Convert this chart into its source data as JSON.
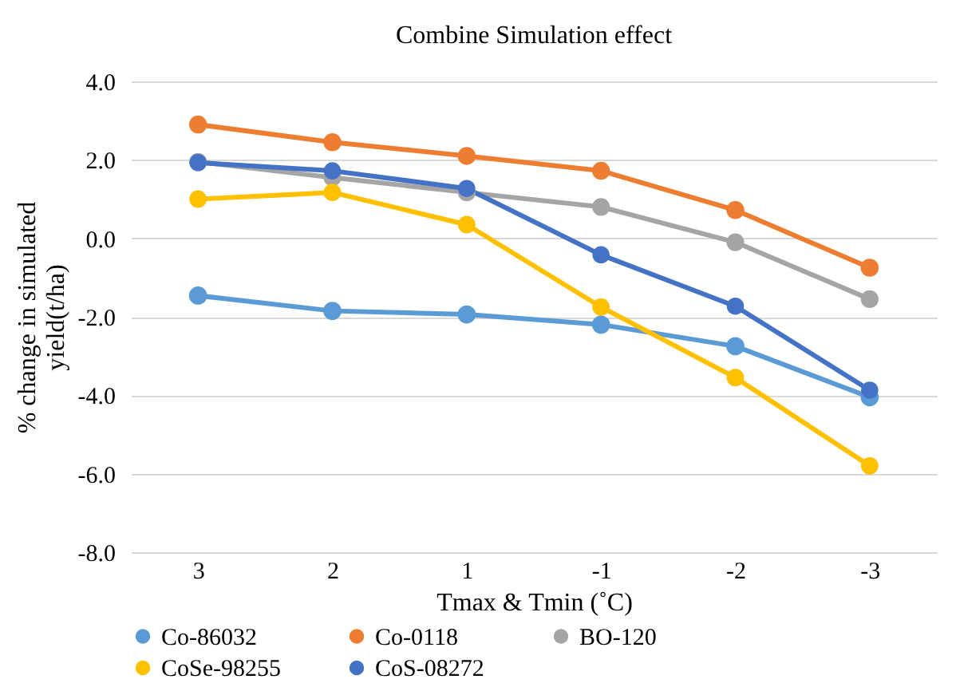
{
  "chart_data": {
    "type": "line",
    "title": "Combine Simulation  effect",
    "xlabel": "Tmax & Tmin (˚C)",
    "ylabel": "% change in simulated yield(t/ha)",
    "categories": [
      "3",
      "2",
      "1",
      "-1",
      "-2",
      "-3"
    ],
    "series": [
      {
        "name": "Co-86032",
        "color": "#5b9bd5",
        "values": [
          -1.46,
          -1.85,
          -1.94,
          -2.2,
          -2.75,
          -4.05
        ]
      },
      {
        "name": "Co-0118",
        "color": "#ed7d31",
        "values": [
          2.9,
          2.45,
          2.1,
          1.72,
          0.72,
          -0.75
        ]
      },
      {
        "name": "BO-120",
        "color": "#a5a5a5",
        "values": [
          1.95,
          1.55,
          1.17,
          0.8,
          -0.1,
          -1.55
        ]
      },
      {
        "name": "CoSe-98255",
        "color": "#ffc000",
        "values": [
          1.0,
          1.17,
          0.35,
          -1.75,
          -3.55,
          -5.8
        ]
      },
      {
        "name": "CoS-08272",
        "color": "#4472c4",
        "values": [
          1.93,
          1.72,
          1.27,
          -0.42,
          -1.73,
          -3.87
        ]
      }
    ],
    "ylim": [
      -8,
      4
    ],
    "yticks": [
      {
        "value": -8,
        "label": "-8.0"
      },
      {
        "value": -6,
        "label": "-6.0"
      },
      {
        "value": -4,
        "label": "-4.0"
      },
      {
        "value": -2,
        "label": "-2.0"
      },
      {
        "value": 0,
        "label": "0.0"
      },
      {
        "value": 2,
        "label": "2.0"
      },
      {
        "value": 4,
        "label": "4.0"
      }
    ],
    "grid": "y",
    "legend": "bottom",
    "marker": "circle"
  }
}
